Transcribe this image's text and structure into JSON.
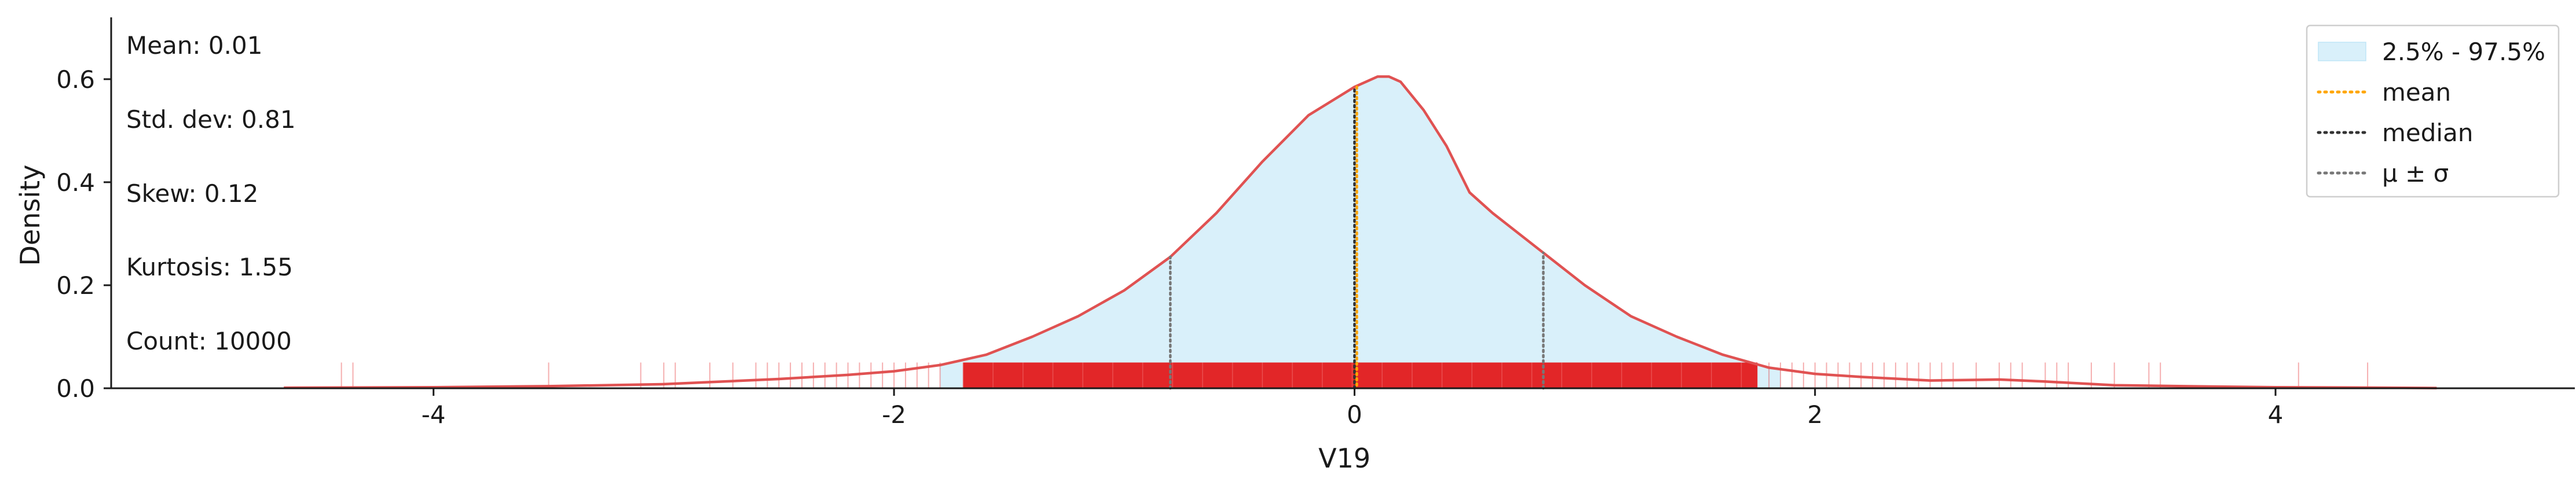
{
  "chart_data": {
    "type": "area",
    "xlabel": "V19",
    "ylabel": "Density",
    "xlim": [
      -5.4,
      5.3
    ],
    "ylim": [
      0,
      0.72
    ],
    "xticks": [
      -4,
      -2,
      0,
      2,
      4
    ],
    "yticks": [
      0.0,
      0.2,
      0.4,
      0.6
    ],
    "grid": false,
    "legend_position": "top-right",
    "stats": {
      "mean": "Mean: 0.01",
      "std": "Std. dev: 0.81",
      "skew": "Skew: 0.12",
      "kurtosis": "Kurtosis: 1.55",
      "count": "Count: 10000"
    },
    "legend": [
      {
        "label": "2.5% - 97.5%",
        "kind": "fill",
        "color": "#d9f0fa"
      },
      {
        "label": "mean",
        "kind": "line",
        "color": "#ffa500",
        "dash": "dotted"
      },
      {
        "label": "median",
        "kind": "line",
        "color": "#333333",
        "dash": "dotted"
      },
      {
        "label": "μ ± σ",
        "kind": "line",
        "color": "#777777",
        "dash": "dotted"
      }
    ],
    "kde": {
      "color": "#e05252",
      "x": [
        -4.65,
        -4.0,
        -3.5,
        -3.0,
        -2.5,
        -2.2,
        -2.0,
        -1.8,
        -1.6,
        -1.4,
        -1.2,
        -1.0,
        -0.8,
        -0.6,
        -0.4,
        -0.2,
        0.0,
        0.05,
        0.1,
        0.15,
        0.2,
        0.3,
        0.4,
        0.5,
        0.6,
        0.8,
        1.0,
        1.2,
        1.4,
        1.6,
        1.8,
        2.0,
        2.2,
        2.5,
        2.8,
        3.0,
        3.3,
        3.6,
        4.0,
        4.5,
        4.7
      ],
      "y": [
        0.001,
        0.002,
        0.004,
        0.008,
        0.018,
        0.026,
        0.033,
        0.045,
        0.065,
        0.1,
        0.14,
        0.19,
        0.255,
        0.34,
        0.44,
        0.53,
        0.585,
        0.595,
        0.605,
        0.605,
        0.595,
        0.54,
        0.47,
        0.38,
        0.34,
        0.27,
        0.2,
        0.14,
        0.1,
        0.065,
        0.04,
        0.028,
        0.022,
        0.015,
        0.017,
        0.013,
        0.006,
        0.004,
        0.002,
        0.001,
        0.0005
      ]
    },
    "interval": {
      "low": -1.8,
      "high": 1.85,
      "color": "#d9f0fa"
    },
    "mean_line": {
      "x": 0.01,
      "color": "#ffa500"
    },
    "median_line": {
      "x": 0.0,
      "color": "#333333"
    },
    "sigma_lines": {
      "x": [
        -0.8,
        0.82
      ],
      "color": "#777777"
    },
    "rug": {
      "color": "#e31a1c",
      "dense_range": [
        -1.7,
        1.75
      ],
      "sparse": [
        -4.4,
        -4.35,
        -3.5,
        -3.1,
        -3.0,
        -2.95,
        -2.8,
        -2.7,
        -2.6,
        -2.55,
        -2.5,
        -2.45,
        -2.4,
        -2.35,
        -2.3,
        -2.25,
        -2.2,
        -2.15,
        -2.1,
        -2.05,
        -2.0,
        -1.95,
        -1.9,
        -1.85,
        -1.8,
        1.8,
        1.85,
        1.9,
        1.95,
        2.0,
        2.05,
        2.1,
        2.15,
        2.2,
        2.25,
        2.3,
        2.35,
        2.4,
        2.45,
        2.5,
        2.55,
        2.6,
        2.7,
        2.8,
        2.85,
        2.9,
        3.0,
        3.05,
        3.1,
        3.2,
        3.3,
        3.45,
        3.5,
        4.1,
        4.4
      ]
    }
  }
}
